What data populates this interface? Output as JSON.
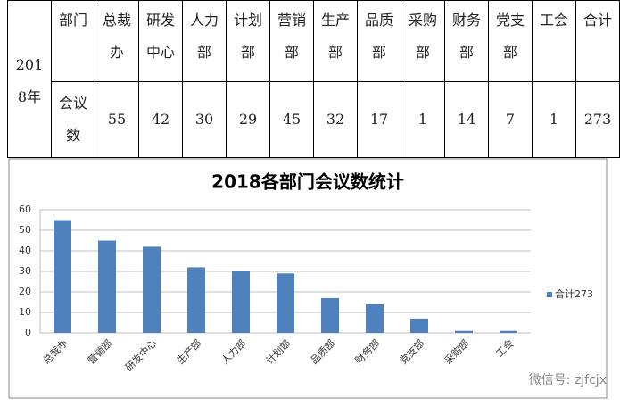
{
  "table": {
    "year": "2018年",
    "header": [
      "部门",
      "总裁办",
      "研发中心",
      "人力部",
      "计划部",
      "营销部",
      "生产部",
      "品质部",
      "采购部",
      "财务部",
      "党支部",
      "工会",
      "合计"
    ],
    "row": [
      "会议数",
      55,
      42,
      30,
      29,
      45,
      32,
      17,
      1,
      14,
      7,
      1,
      273
    ]
  },
  "chart_data": {
    "type": "bar",
    "title": "2018各部门会议数统计",
    "categories": [
      "总裁办",
      "营销部",
      "研发中心",
      "生产部",
      "人力部",
      "计划部",
      "品质部",
      "财务部",
      "党支部",
      "采购部",
      "工会"
    ],
    "series": [
      {
        "name": "合计273",
        "color": "#4f81bd",
        "values": [
          55,
          45,
          42,
          32,
          30,
          29,
          17,
          14,
          7,
          1,
          1
        ]
      }
    ],
    "ylim": [
      0,
      60
    ],
    "yticks": [
      0,
      10,
      20,
      30,
      40,
      50,
      60
    ],
    "grid": true,
    "legend": "right"
  },
  "watermark": "微信号: zjfcjx"
}
